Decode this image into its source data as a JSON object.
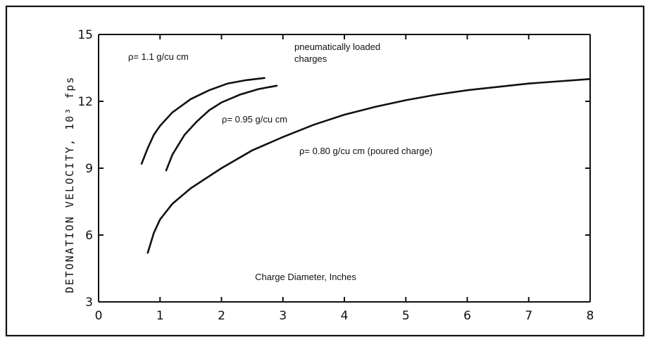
{
  "chart_data": {
    "type": "line",
    "title": "",
    "xlabel": "Charge Diameter, Inches",
    "ylabel": "DETONATION VELOCITY, 10³ fps",
    "xlim": [
      0,
      8
    ],
    "ylim": [
      3,
      15
    ],
    "x_ticks": [
      "0",
      "1",
      "2",
      "3",
      "4",
      "5",
      "6",
      "7",
      "8"
    ],
    "y_ticks": [
      "3",
      "6",
      "9",
      "12",
      "15"
    ],
    "grid": false,
    "legend": "none",
    "series": [
      {
        "name": "ρ= 1.1 g/cu cm",
        "x": [
          0.7,
          0.8,
          0.9,
          1.0,
          1.2,
          1.5,
          1.8,
          2.1,
          2.4,
          2.7
        ],
        "y": [
          9.2,
          9.9,
          10.5,
          10.9,
          11.5,
          12.1,
          12.5,
          12.8,
          12.95,
          13.05
        ]
      },
      {
        "name": "ρ= 0.95 g/cu cm",
        "x": [
          1.1,
          1.2,
          1.4,
          1.6,
          1.8,
          2.0,
          2.3,
          2.6,
          2.9
        ],
        "y": [
          8.9,
          9.6,
          10.5,
          11.1,
          11.6,
          11.95,
          12.3,
          12.55,
          12.7
        ]
      },
      {
        "name": "ρ= 0.80 g/cu cm (poured charge)",
        "x": [
          0.8,
          0.9,
          1.0,
          1.2,
          1.5,
          2.0,
          2.5,
          3.0,
          3.5,
          4.0,
          4.5,
          5.0,
          5.5,
          6.0,
          6.5,
          7.0,
          7.5,
          8.0
        ],
        "y": [
          5.2,
          6.1,
          6.7,
          7.4,
          8.1,
          9.0,
          9.8,
          10.4,
          10.95,
          11.4,
          11.75,
          12.05,
          12.3,
          12.5,
          12.65,
          12.8,
          12.9,
          13.0
        ]
      }
    ],
    "annotations": {
      "pneumatic": [
        "pneumatically loaded",
        "charges"
      ]
    }
  }
}
